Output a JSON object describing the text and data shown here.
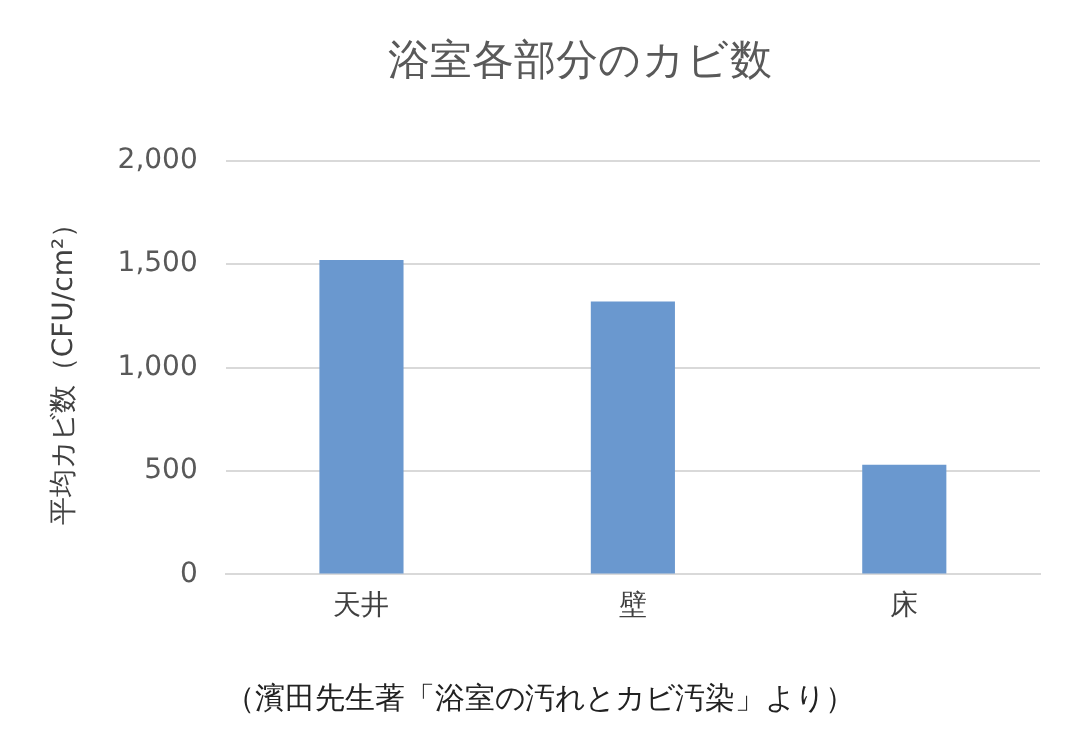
{
  "chart_data": {
    "type": "bar",
    "title": "浴室各部分のカビ数",
    "ylabel": "平均カビ数（CFU/cm²）",
    "categories": [
      "天井",
      "壁",
      "床"
    ],
    "values": [
      1520,
      1320,
      530
    ],
    "color": "#6a98cf",
    "ylim": [
      0,
      2000
    ],
    "yticks": [
      {
        "value": 0,
        "label": "0"
      },
      {
        "value": 500,
        "label": "500"
      },
      {
        "value": 1000,
        "label": "1,000"
      },
      {
        "value": 1500,
        "label": "1,500"
      },
      {
        "value": 2000,
        "label": "2,000"
      }
    ],
    "grid": "y",
    "annotations": [
      "（濱田先生著「浴室の汚れとカビ汚染」より）"
    ]
  }
}
